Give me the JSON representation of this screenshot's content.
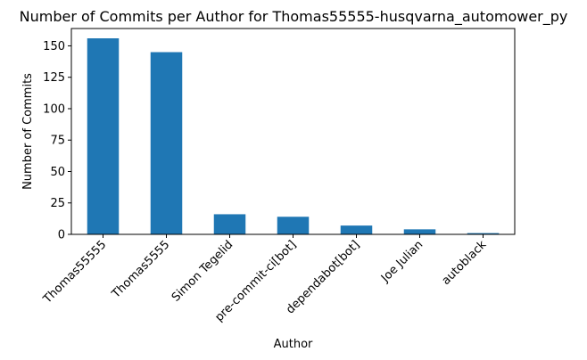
{
  "chart_data": {
    "type": "bar",
    "title": "Number of Commits per Author for Thomas55555-husqvarna_automower_py",
    "xlabel": "Author",
    "ylabel": "Number of Commits",
    "categories": [
      "Thomas55555",
      "Thomas5555",
      "Simon Tegelid",
      "pre-commit-ci[bot]",
      "dependabot[bot]",
      "Joe Julian",
      "autoblack"
    ],
    "values": [
      156,
      145,
      16,
      14,
      7,
      4,
      1
    ],
    "ylim": [
      0,
      163.8
    ],
    "yticks": [
      0,
      25,
      50,
      75,
      100,
      125,
      150
    ],
    "bar_color": "#1f77b4",
    "grid": false,
    "legend": "none"
  }
}
